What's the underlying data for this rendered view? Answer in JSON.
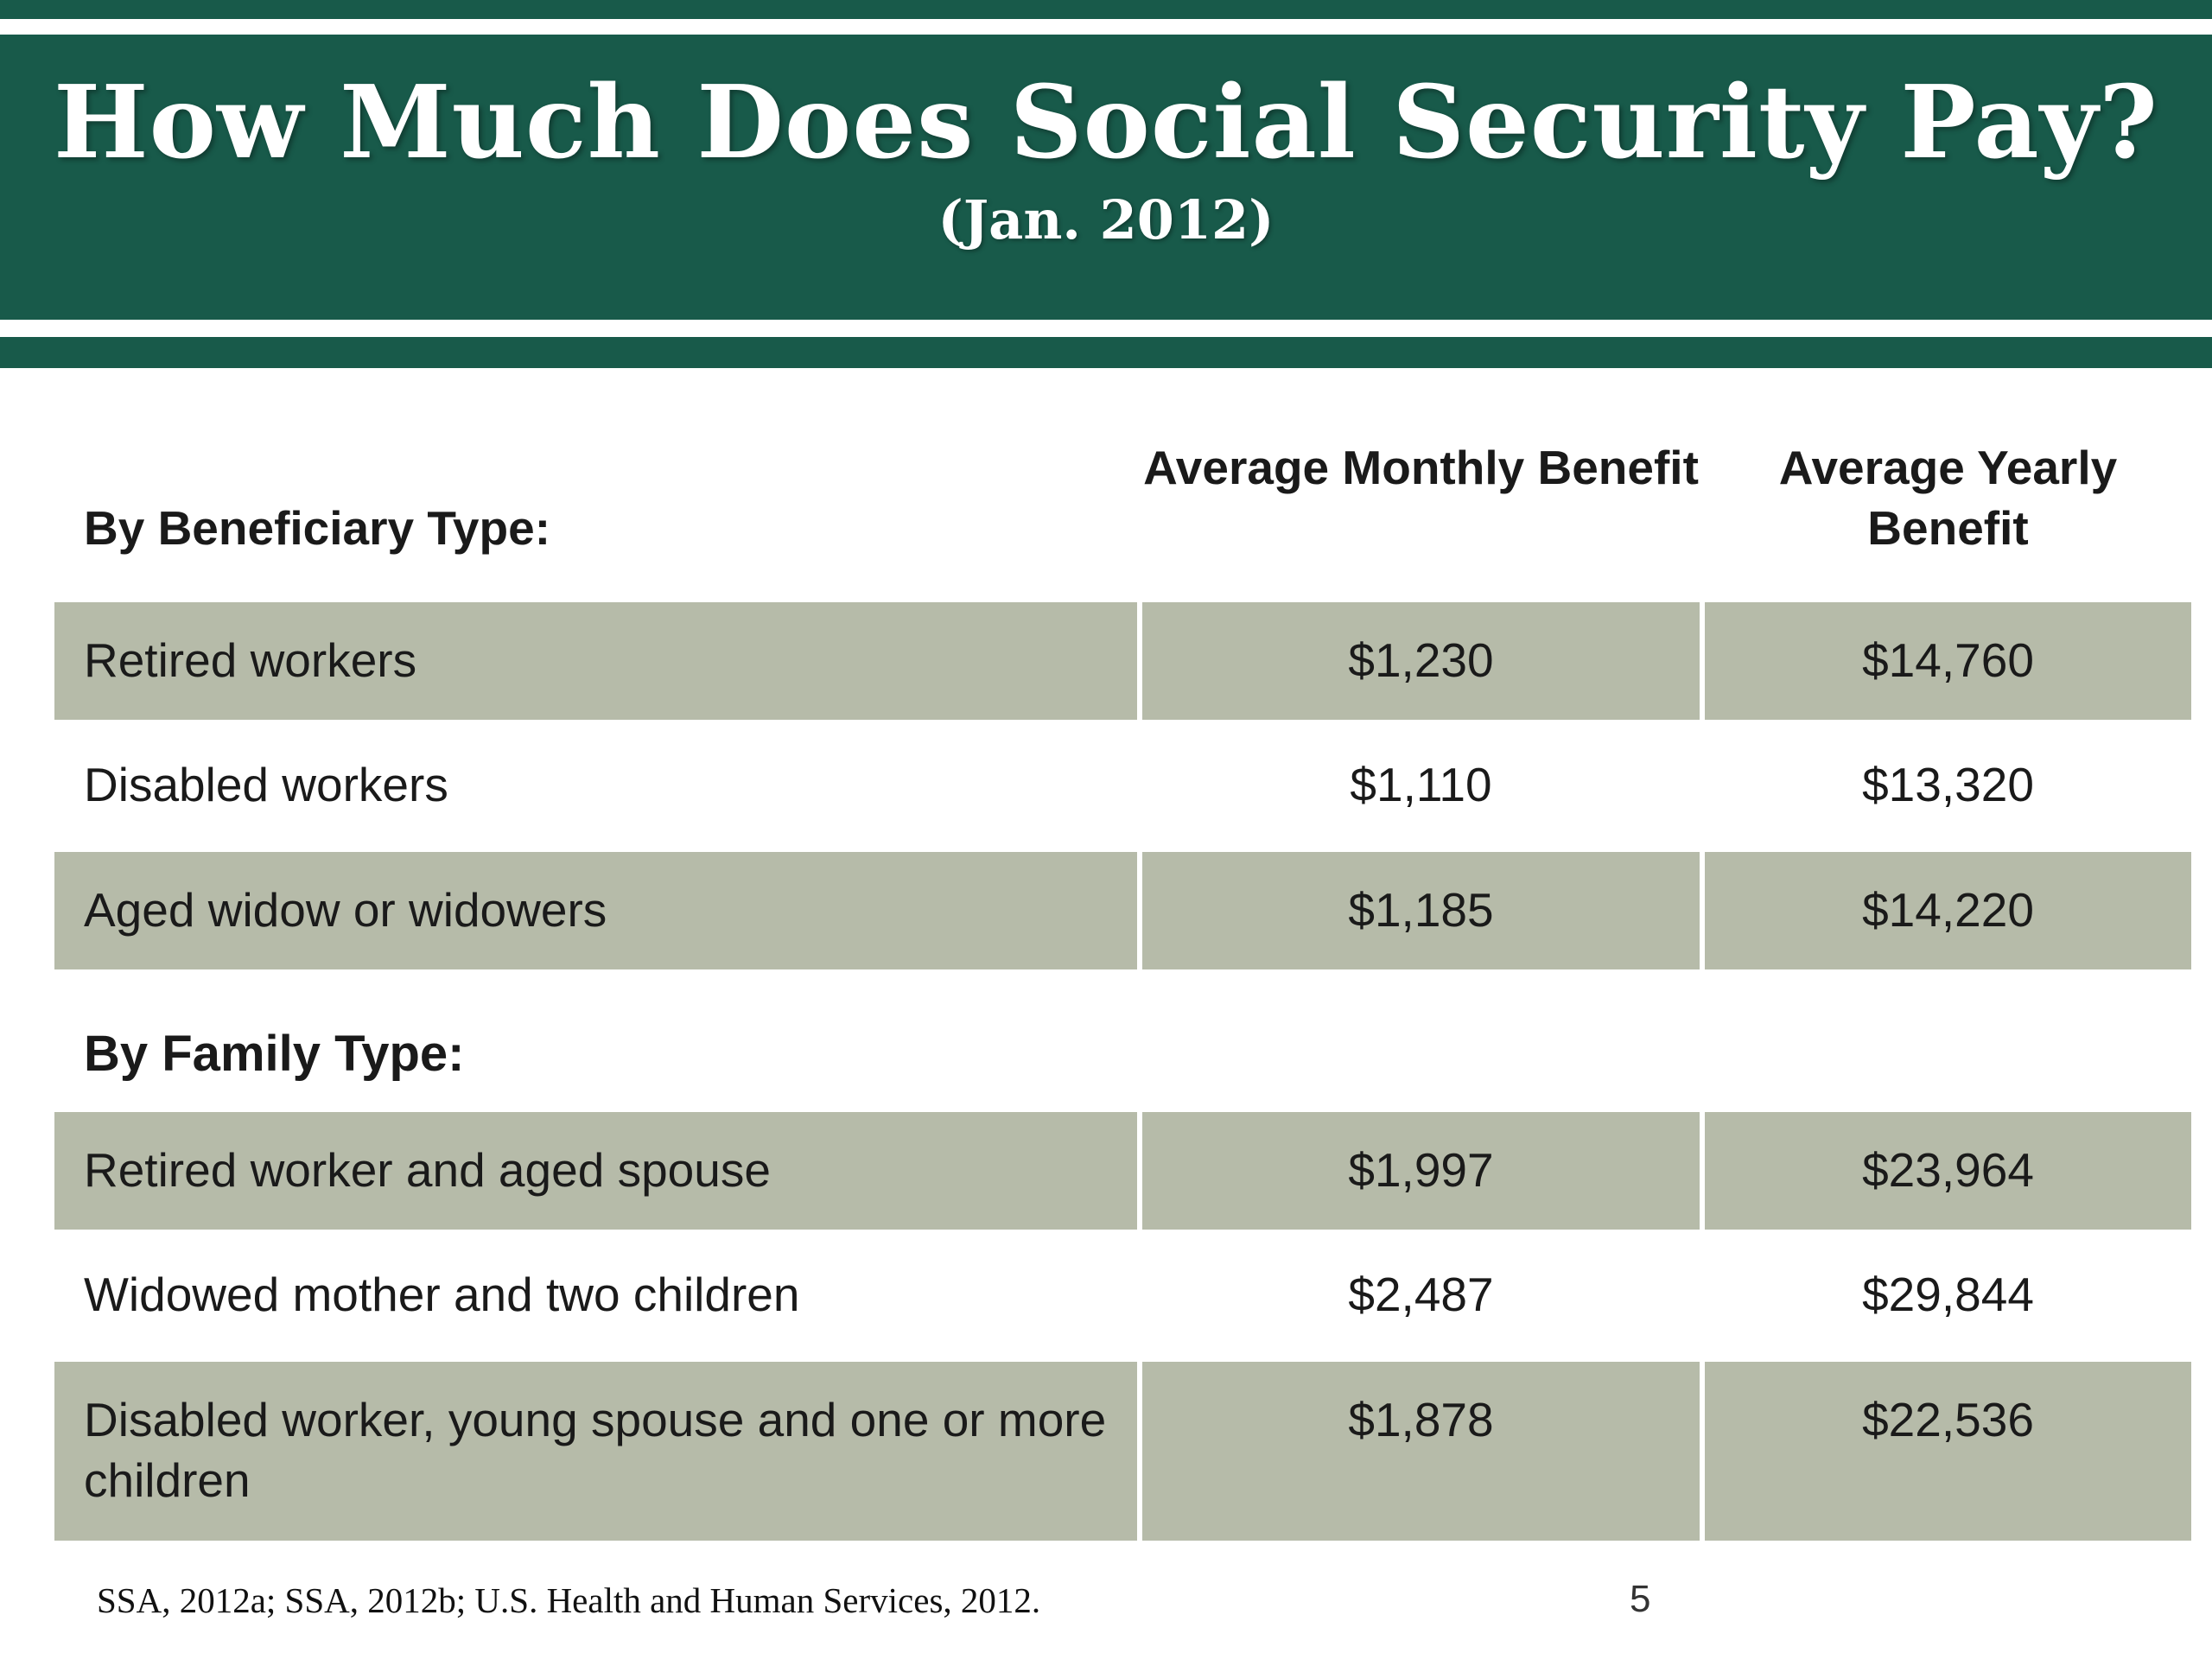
{
  "slide": {
    "title": "How Much Does Social Security Pay?",
    "subtitle": "(Jan. 2012)",
    "footer": "SSA, 2012a; SSA, 2012b; U.S. Health and Human Services, 2012.",
    "page_number": "5"
  },
  "table": {
    "col_headers": [
      "Average Monthly Benefit",
      "Average Yearly Benefit"
    ],
    "sections": [
      {
        "heading": "By Beneficiary Type:",
        "rows": [
          {
            "label": "Retired workers",
            "monthly": "$1,230",
            "yearly": "$14,760"
          },
          {
            "label": "Disabled workers",
            "monthly": "$1,110",
            "yearly": "$13,320"
          },
          {
            "label": "Aged widow or widowers",
            "monthly": "$1,185",
            "yearly": "$14,220"
          }
        ]
      },
      {
        "heading": "By Family Type:",
        "rows": [
          {
            "label": "Retired worker and aged spouse",
            "monthly": "$1,997",
            "yearly": "$23,964"
          },
          {
            "label": "Widowed mother and two children",
            "monthly": "$2,487",
            "yearly": "$29,844"
          },
          {
            "label": "Disabled worker, young spouse and one or more children",
            "monthly": "$1,878",
            "yearly": "$22,536"
          }
        ]
      }
    ]
  },
  "colors": {
    "header_green": "#185a4a",
    "row_shade": "#b6bba9",
    "title_text": "#ffffff"
  }
}
